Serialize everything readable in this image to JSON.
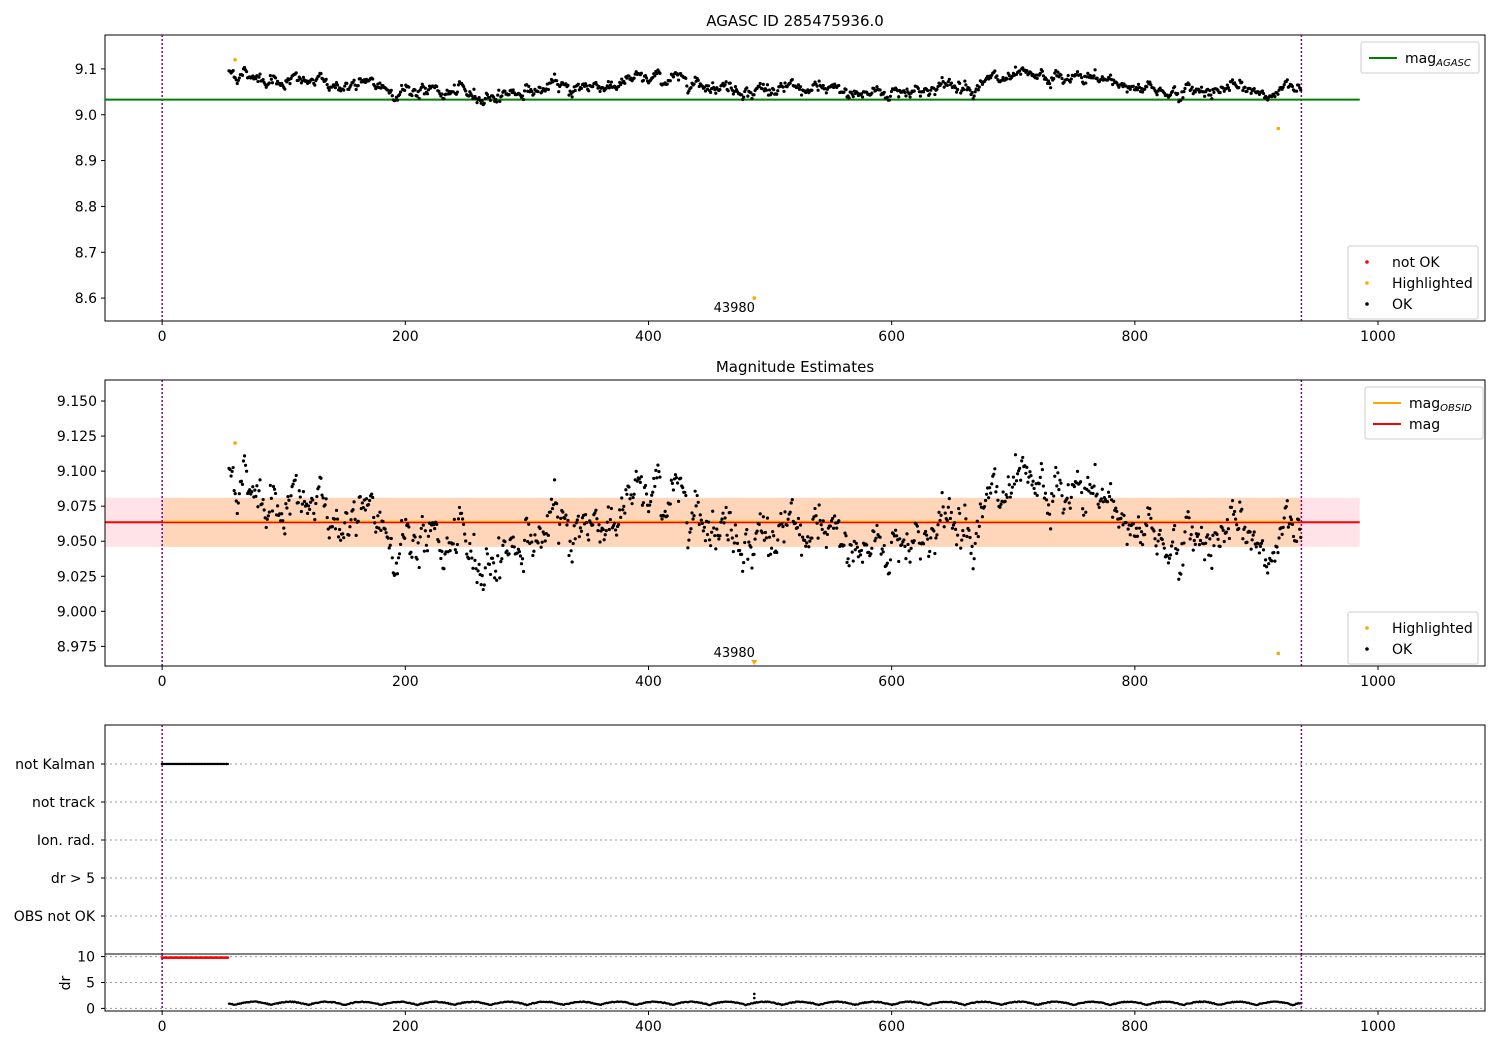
{
  "chart_data": [
    {
      "type": "scatter",
      "title": "AGASC ID 285475936.0",
      "xlim": [
        -47,
        1088
      ],
      "ylim": [
        8.55,
        9.174
      ],
      "xticks": [
        0,
        200,
        400,
        600,
        800,
        1000
      ],
      "yticks": [
        8.6,
        8.7,
        8.8,
        8.9,
        9.0,
        9.1
      ],
      "ytick_decimals": 1,
      "vlines": [
        0,
        937
      ],
      "mag_agasc": 9.033,
      "band": null,
      "mean_line": null,
      "series": {
        "ok": {
          "base": 9.064,
          "drift": [
            [
              55,
              9.1
            ],
            [
              110,
              9.075
            ],
            [
              150,
              9.065
            ],
            [
              200,
              9.055
            ],
            [
              260,
              9.036
            ],
            [
              290,
              9.05
            ],
            [
              340,
              9.06
            ],
            [
              400,
              9.08
            ],
            [
              430,
              9.085
            ],
            [
              470,
              9.06
            ],
            [
              520,
              9.05
            ],
            [
              580,
              9.045
            ],
            [
              640,
              9.06
            ],
            [
              680,
              9.075
            ],
            [
              720,
              9.075
            ],
            [
              760,
              9.082
            ],
            [
              800,
              9.065
            ],
            [
              840,
              9.045
            ],
            [
              870,
              9.06
            ],
            [
              900,
              9.045
            ],
            [
              935,
              9.055
            ]
          ],
          "noise": 0.012
        },
        "highlighted": [
          {
            "x": 60,
            "y": 9.12
          },
          {
            "x": 487,
            "y": 8.6
          },
          {
            "x": 918,
            "y": 8.97
          }
        ],
        "not_ok": []
      },
      "annotation": {
        "x": 487,
        "text": "43980"
      },
      "legend_top": [
        {
          "label": "mag",
          "sub": "AGASC",
          "color": "#008000"
        }
      ],
      "legend_bottom": [
        {
          "label": "not OK",
          "color": "#ff0000"
        },
        {
          "label": "Highlighted",
          "color": "#ffa500"
        },
        {
          "label": "OK",
          "color": "#000000"
        }
      ]
    },
    {
      "type": "scatter",
      "title": "Magnitude Estimates",
      "xlim": [
        -47,
        1088
      ],
      "ylim": [
        8.961,
        9.165
      ],
      "xticks": [
        0,
        200,
        400,
        600,
        800,
        1000
      ],
      "yticks": [
        8.975,
        9.0,
        9.025,
        9.05,
        9.075,
        9.1,
        9.125,
        9.15
      ],
      "ytick_decimals": 3,
      "vlines": [
        0,
        937
      ],
      "mag_line": 9.0635,
      "band": {
        "low": 9.046,
        "high": 9.081,
        "color": "#ffc0cb"
      },
      "band_obsid": {
        "low": 9.046,
        "high": 9.081,
        "color": "#ffa500"
      },
      "highlighted": [
        {
          "x": 60,
          "y": 9.12
        },
        {
          "x": 918,
          "y": 8.97
        }
      ],
      "annotation": {
        "x": 487,
        "text": "43980"
      },
      "legend_top": [
        {
          "label": "mag",
          "sub": "OBSID",
          "color": "#ffa500"
        },
        {
          "label": "mag",
          "sub": "",
          "color": "#ff0000"
        }
      ],
      "legend_bottom": [
        {
          "label": "Highlighted",
          "color": "#ffa500"
        },
        {
          "label": "OK",
          "color": "#000000"
        }
      ]
    },
    {
      "type": "scatter",
      "flags": [
        "not Kalman",
        "not track",
        "Ion. rad.",
        "dr > 5",
        "OBS not OK"
      ],
      "not_kalman_range": [
        0,
        55
      ],
      "xlim": [
        -47,
        1088
      ],
      "xticks": [
        0,
        200,
        400,
        600,
        800,
        1000
      ],
      "vlines": [
        0,
        937
      ]
    },
    {
      "type": "scatter",
      "ylabel": "dr",
      "ylim": [
        -0.5,
        10.5
      ],
      "yticks": [
        0,
        5,
        10
      ],
      "xlim": [
        -47,
        1088
      ],
      "xticks": [
        0,
        200,
        400,
        600,
        800,
        1000
      ],
      "vlines": [
        0,
        937
      ],
      "high_dr_range": [
        0,
        55
      ],
      "high_dr_value": 9.8,
      "ok_range": [
        55,
        937
      ]
    }
  ]
}
